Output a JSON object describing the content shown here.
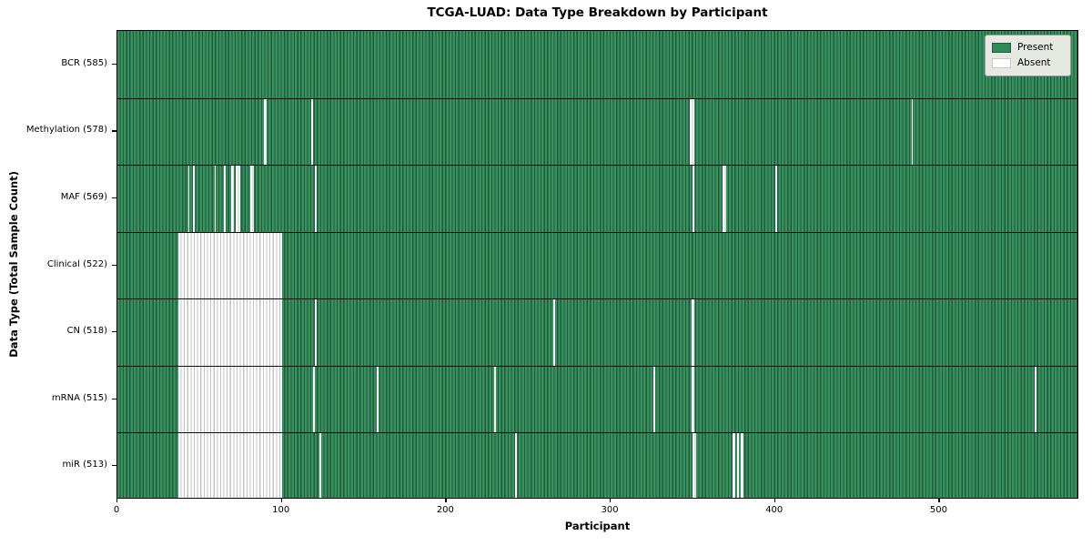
{
  "chart_data": {
    "type": "heatmap",
    "title": "TCGA-LUAD: Data Type Breakdown by Participant",
    "xlabel": "Participant",
    "ylabel": "Data Type (Total Sample Count)",
    "x_ticks": [
      0,
      100,
      200,
      300,
      400,
      500
    ],
    "x_max": 585,
    "total_participants": 585,
    "legend": [
      {
        "label": "Present",
        "color": "#2e8b57"
      },
      {
        "label": "Absent",
        "color": "#ffffff"
      }
    ],
    "legend_position": "upper right",
    "grid": false,
    "rows": [
      {
        "label": "BCR (585)",
        "name": "BCR",
        "present_count": 585,
        "absent_ranges": []
      },
      {
        "label": "Methylation (578)",
        "name": "Methylation",
        "present_count": 578,
        "absent_ranges": [
          [
            89,
            2
          ],
          [
            118,
            1
          ],
          [
            348,
            3
          ],
          [
            483,
            1
          ]
        ]
      },
      {
        "label": "MAF (569)",
        "name": "MAF",
        "present_count": 569,
        "absent_ranges": [
          [
            43,
            1
          ],
          [
            46,
            1
          ],
          [
            59,
            1
          ],
          [
            65,
            1
          ],
          [
            69,
            2
          ],
          [
            72,
            3
          ],
          [
            81,
            2
          ],
          [
            120,
            1
          ],
          [
            350,
            1
          ],
          [
            368,
            2
          ],
          [
            400,
            1
          ]
        ]
      },
      {
        "label": "Clinical (522)",
        "name": "Clinical",
        "present_count": 522,
        "absent_ranges": [
          [
            37,
            63
          ]
        ]
      },
      {
        "label": "CN (518)",
        "name": "CN",
        "present_count": 518,
        "absent_ranges": [
          [
            37,
            63
          ],
          [
            120,
            1
          ],
          [
            265,
            1
          ],
          [
            349,
            2
          ]
        ]
      },
      {
        "label": "mRNA (515)",
        "name": "mRNA",
        "present_count": 515,
        "absent_ranges": [
          [
            37,
            63
          ],
          [
            119,
            1
          ],
          [
            158,
            1
          ],
          [
            229,
            1
          ],
          [
            326,
            1
          ],
          [
            349,
            2
          ],
          [
            558,
            1
          ]
        ]
      },
      {
        "label": "miR (513)",
        "name": "miR",
        "present_count": 513,
        "absent_ranges": [
          [
            37,
            63
          ],
          [
            123,
            1
          ],
          [
            242,
            1
          ],
          [
            350,
            2
          ],
          [
            374,
            2
          ],
          [
            377,
            1
          ],
          [
            379,
            2
          ]
        ]
      }
    ],
    "colors": {
      "present_fill": "#2e8b57",
      "present_edge": "#1e5c3c",
      "absent_fill": "#ffffff",
      "absent_edge": "#c4c4c4"
    }
  }
}
